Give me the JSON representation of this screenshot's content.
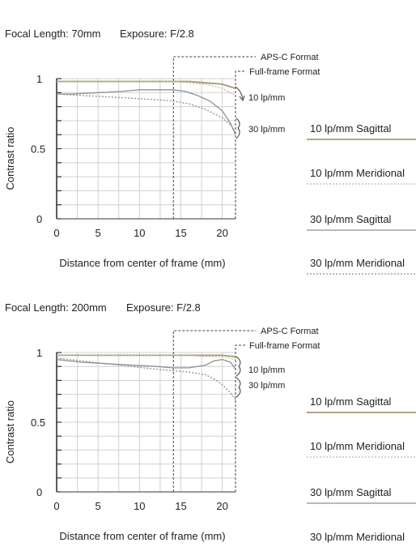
{
  "chart_data": [
    {
      "type": "line",
      "header": {
        "focal_label": "Focal Length: 70mm",
        "exposure_label": "Exposure: F/2.8"
      },
      "xlabel": "Distance from center of frame (mm)",
      "ylabel": "Contrast ratio",
      "xlim": [
        0,
        21.6
      ],
      "ylim": [
        0,
        1
      ],
      "xticks": [
        0,
        5,
        10,
        15,
        20
      ],
      "yticks": [
        {
          "v": 0,
          "label": "0"
        },
        {
          "v": 0.5,
          "label": "0.5"
        },
        {
          "v": 1,
          "label": "1"
        }
      ],
      "grid": true,
      "aps_c_x": 14.1,
      "full_frame_x": 21.6,
      "annotations": {
        "aps_c": "APS-C Format",
        "full_frame": "Full-frame Format",
        "freq_10": "10 lp/mm",
        "freq_30": "30 lp/mm"
      },
      "series": [
        {
          "name": "10 lp/mm Sagittal",
          "style": "sagittal10",
          "x": [
            0,
            5,
            10,
            14,
            16,
            18,
            20,
            21.6
          ],
          "y": [
            0.98,
            0.98,
            0.98,
            0.98,
            0.98,
            0.97,
            0.96,
            0.93
          ]
        },
        {
          "name": "10 lp/mm Meridional",
          "style": "meridional10",
          "x": [
            0,
            5,
            10,
            14,
            16,
            18,
            20,
            21.6
          ],
          "y": [
            0.98,
            0.98,
            0.98,
            0.98,
            0.97,
            0.96,
            0.93,
            0.88
          ]
        },
        {
          "name": "30 lp/mm Sagittal",
          "style": "sagittal30",
          "x": [
            0,
            2,
            5,
            8,
            10,
            12,
            14,
            15.5,
            17,
            18.5,
            20,
            21,
            21.6
          ],
          "y": [
            0.89,
            0.89,
            0.9,
            0.91,
            0.92,
            0.92,
            0.92,
            0.91,
            0.88,
            0.84,
            0.77,
            0.68,
            0.6
          ]
        },
        {
          "name": "30 lp/mm Meridional",
          "style": "meridional30",
          "x": [
            0,
            3,
            6,
            9,
            12,
            14,
            16,
            18,
            20,
            21,
            21.6
          ],
          "y": [
            0.89,
            0.88,
            0.87,
            0.86,
            0.85,
            0.84,
            0.82,
            0.78,
            0.72,
            0.67,
            0.62
          ]
        }
      ]
    },
    {
      "type": "line",
      "header": {
        "focal_label": "Focal Length: 200mm",
        "exposure_label": "Exposure: F/2.8"
      },
      "xlabel": "Distance from center of frame (mm)",
      "ylabel": "Contrast ratio",
      "xlim": [
        0,
        21.6
      ],
      "ylim": [
        0,
        1
      ],
      "xticks": [
        0,
        5,
        10,
        15,
        20
      ],
      "yticks": [
        {
          "v": 0,
          "label": "0"
        },
        {
          "v": 0.5,
          "label": "0.5"
        },
        {
          "v": 1,
          "label": "1"
        }
      ],
      "grid": true,
      "aps_c_x": 14.1,
      "full_frame_x": 21.6,
      "annotations": {
        "aps_c": "APS-C Format",
        "full_frame": "Full-frame Format",
        "freq_10": "10 lp/mm",
        "freq_30": "30 lp/mm"
      },
      "series": [
        {
          "name": "10 lp/mm Sagittal",
          "style": "sagittal10",
          "x": [
            0,
            5,
            10,
            14,
            16,
            18,
            20,
            21.6
          ],
          "y": [
            0.98,
            0.98,
            0.98,
            0.98,
            0.98,
            0.98,
            0.98,
            0.97
          ]
        },
        {
          "name": "10 lp/mm Meridional",
          "style": "meridional10",
          "x": [
            0,
            5,
            10,
            14,
            16,
            18,
            20,
            21.6
          ],
          "y": [
            0.98,
            0.98,
            0.98,
            0.98,
            0.98,
            0.97,
            0.97,
            0.95
          ]
        },
        {
          "name": "30 lp/mm Sagittal",
          "style": "sagittal30",
          "x": [
            0,
            3,
            6,
            9,
            12,
            14,
            16,
            18,
            19,
            20,
            21,
            21.6
          ],
          "y": [
            0.95,
            0.93,
            0.92,
            0.91,
            0.9,
            0.89,
            0.89,
            0.91,
            0.94,
            0.95,
            0.93,
            0.88
          ]
        },
        {
          "name": "30 lp/mm Meridional",
          "style": "meridional30",
          "x": [
            0,
            3,
            6,
            9,
            12,
            14,
            16,
            18,
            19,
            20,
            21,
            21.6
          ],
          "y": [
            0.96,
            0.94,
            0.92,
            0.9,
            0.88,
            0.87,
            0.86,
            0.84,
            0.81,
            0.77,
            0.71,
            0.66
          ]
        }
      ]
    }
  ],
  "legend": [
    {
      "label": "10 lp/mm Sagittal",
      "style": "sagittal10"
    },
    {
      "label": "10 lp/mm Meridional",
      "style": "meridional10"
    },
    {
      "label": "30 lp/mm Sagittal",
      "style": "sagittal30"
    },
    {
      "label": "30 lp/mm Meridional",
      "style": "meridional30"
    }
  ],
  "colors": {
    "sagittal10": "#a59a72",
    "meridional10": "#c4b98e",
    "sagittal30": "#8f8f8f",
    "meridional30": "#8f8f8f",
    "grid": "#d0d0d0",
    "axis": "#333333"
  }
}
